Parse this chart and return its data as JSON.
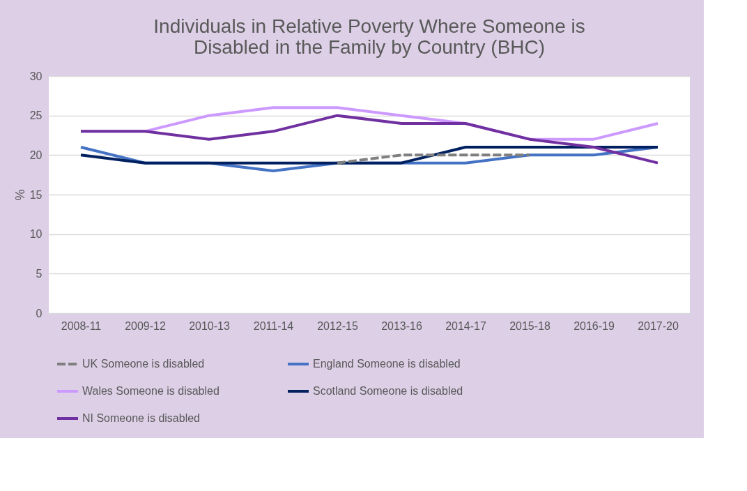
{
  "chart_data": {
    "type": "line",
    "title": "Individuals in Relative Poverty Where Someone is\nDisabled in the Family by Country (BHC)",
    "ylabel": "%",
    "categories": [
      "2008-11",
      "2009-12",
      "2010-13",
      "2011-14",
      "2012-15",
      "2013-16",
      "2014-17",
      "2015-18",
      "2016-19",
      "2017-20"
    ],
    "series": [
      {
        "name": "UK Someone is disabled",
        "color": "#7f7f7f",
        "line_style": "dashed",
        "values": [
          null,
          null,
          null,
          null,
          19,
          20,
          20,
          20,
          null,
          null
        ]
      },
      {
        "name": "England Someone is disabled",
        "color": "#4472c4",
        "values": [
          21,
          19,
          19,
          18,
          19,
          19,
          19,
          20,
          20,
          21
        ]
      },
      {
        "name": "Wales Someone is disabled",
        "color": "#cc99ff",
        "values": [
          23,
          23,
          25,
          26,
          26,
          25,
          24,
          22,
          22,
          24
        ]
      },
      {
        "name": "Scotland Someone is disabled",
        "color": "#002060",
        "values": [
          20,
          19,
          19,
          19,
          19,
          19,
          21,
          21,
          21,
          21
        ]
      },
      {
        "name": "NI Someone is disabled",
        "color": "#7030a0",
        "values": [
          23,
          23,
          22,
          23,
          25,
          24,
          24,
          22,
          21,
          19
        ]
      }
    ],
    "ylim": [
      0,
      30
    ],
    "yticks": [
      0,
      5,
      10,
      15,
      20,
      25,
      30
    ],
    "grid": "y",
    "legend": "bottom",
    "line_style": "solid",
    "marker": "none"
  }
}
